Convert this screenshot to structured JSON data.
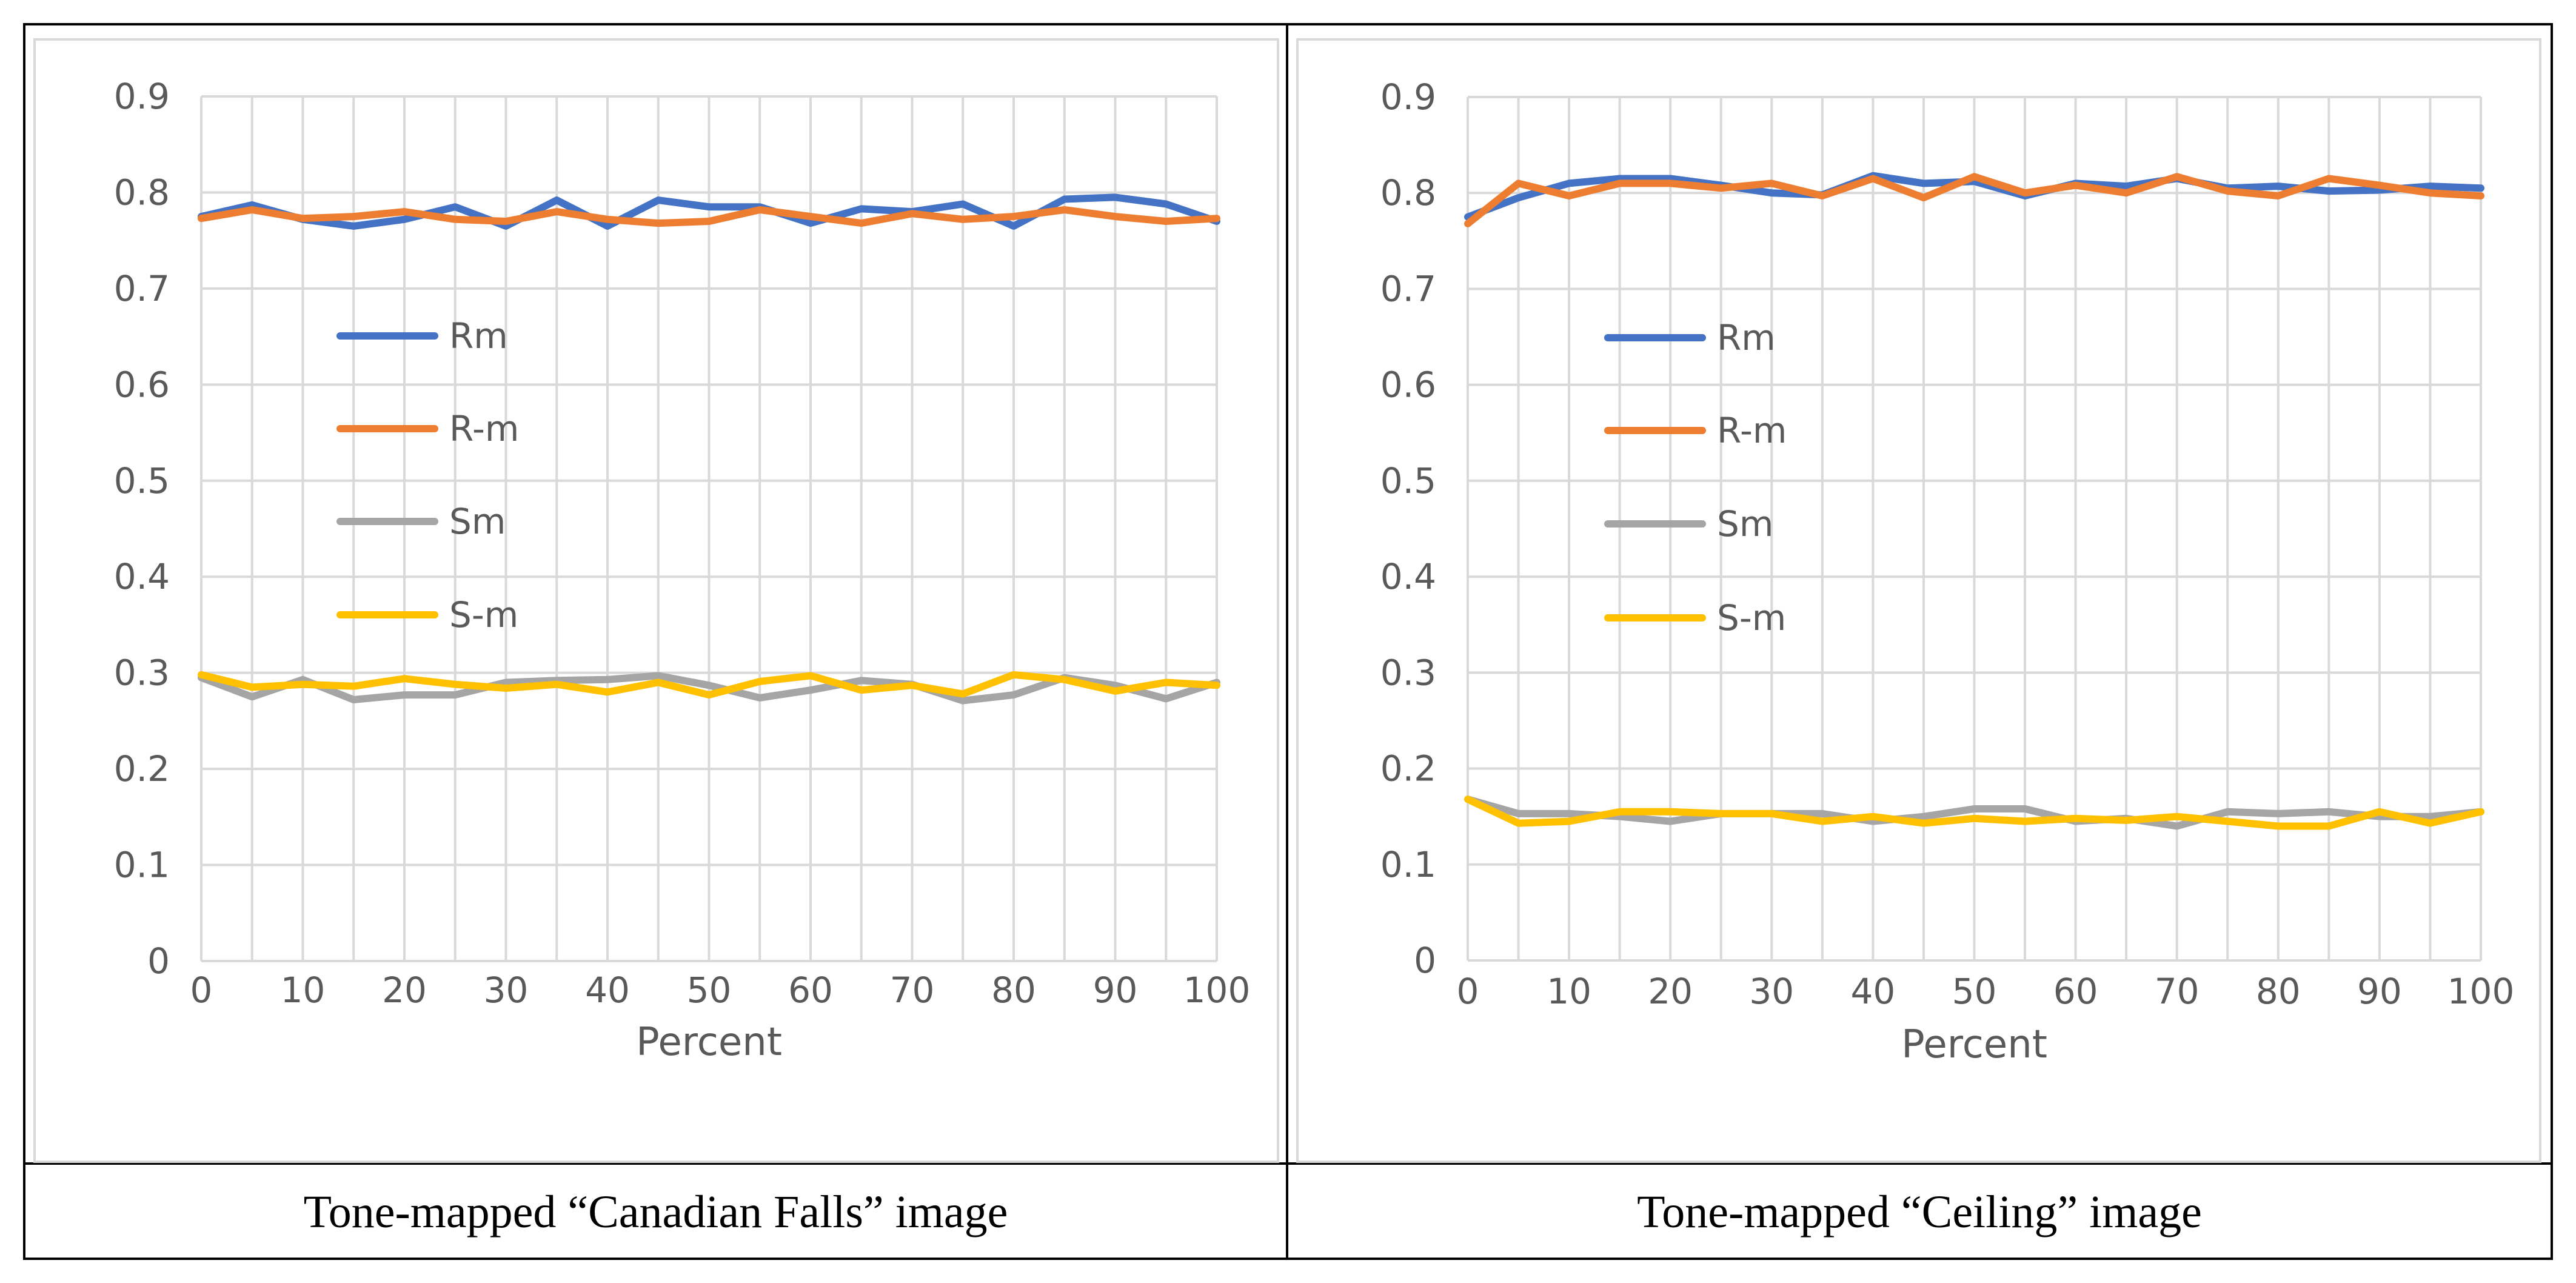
{
  "chart_data": [
    {
      "type": "line",
      "caption": "Tone-mapped “Canadian Falls” image",
      "xlabel": "Percent",
      "ylabel": "",
      "xlim": [
        0,
        100
      ],
      "ylim": [
        0,
        0.9
      ],
      "x_ticks": [
        0,
        10,
        20,
        30,
        40,
        50,
        60,
        70,
        80,
        90,
        100
      ],
      "y_ticks": [
        0,
        0.1,
        0.2,
        0.3,
        0.4,
        0.5,
        0.6,
        0.7,
        0.8,
        0.9
      ],
      "grid": true,
      "legend": "center-left",
      "x": [
        0,
        5,
        10,
        15,
        20,
        25,
        30,
        35,
        40,
        45,
        50,
        55,
        60,
        65,
        70,
        75,
        80,
        85,
        90,
        95,
        100
      ],
      "series": [
        {
          "name": "Rm",
          "color": "#4472c4",
          "values": [
            0.775,
            0.787,
            0.772,
            0.765,
            0.772,
            0.785,
            0.765,
            0.792,
            0.765,
            0.792,
            0.785,
            0.785,
            0.768,
            0.783,
            0.78,
            0.788,
            0.765,
            0.793,
            0.795,
            0.788,
            0.77
          ]
        },
        {
          "name": "R-m",
          "color": "#ed7d31",
          "values": [
            0.773,
            0.782,
            0.773,
            0.775,
            0.78,
            0.772,
            0.77,
            0.78,
            0.772,
            0.768,
            0.77,
            0.782,
            0.775,
            0.768,
            0.778,
            0.772,
            0.775,
            0.782,
            0.775,
            0.77,
            0.773
          ]
        },
        {
          "name": "Sm",
          "color": "#a5a5a5",
          "values": [
            0.295,
            0.275,
            0.293,
            0.272,
            0.277,
            0.277,
            0.29,
            0.292,
            0.293,
            0.297,
            0.287,
            0.274,
            0.282,
            0.292,
            0.288,
            0.271,
            0.277,
            0.295,
            0.287,
            0.273,
            0.29
          ]
        },
        {
          "name": "S-m",
          "color": "#ffc000",
          "values": [
            0.298,
            0.285,
            0.288,
            0.286,
            0.294,
            0.288,
            0.284,
            0.288,
            0.28,
            0.29,
            0.277,
            0.291,
            0.297,
            0.282,
            0.287,
            0.278,
            0.298,
            0.293,
            0.281,
            0.29,
            0.287
          ]
        }
      ]
    },
    {
      "type": "line",
      "caption": "Tone-mapped “Ceiling” image",
      "xlabel": "Percent",
      "ylabel": "",
      "xlim": [
        0,
        100
      ],
      "ylim": [
        0,
        0.9
      ],
      "x_ticks": [
        0,
        10,
        20,
        30,
        40,
        50,
        60,
        70,
        80,
        90,
        100
      ],
      "y_ticks": [
        0,
        0.1,
        0.2,
        0.3,
        0.4,
        0.5,
        0.6,
        0.7,
        0.8,
        0.9
      ],
      "grid": true,
      "legend": "center-left",
      "x": [
        0,
        5,
        10,
        15,
        20,
        25,
        30,
        35,
        40,
        45,
        50,
        55,
        60,
        65,
        70,
        75,
        80,
        85,
        90,
        95,
        100
      ],
      "series": [
        {
          "name": "Rm",
          "color": "#4472c4",
          "values": [
            0.775,
            0.795,
            0.81,
            0.815,
            0.815,
            0.808,
            0.8,
            0.798,
            0.818,
            0.81,
            0.812,
            0.797,
            0.81,
            0.807,
            0.815,
            0.805,
            0.807,
            0.802,
            0.803,
            0.807,
            0.805
          ]
        },
        {
          "name": "R-m",
          "color": "#ed7d31",
          "values": [
            0.768,
            0.81,
            0.797,
            0.81,
            0.81,
            0.805,
            0.81,
            0.797,
            0.815,
            0.795,
            0.817,
            0.8,
            0.808,
            0.8,
            0.817,
            0.802,
            0.797,
            0.815,
            0.808,
            0.8,
            0.797
          ]
        },
        {
          "name": "Sm",
          "color": "#a5a5a5",
          "values": [
            0.168,
            0.153,
            0.153,
            0.15,
            0.145,
            0.153,
            0.153,
            0.153,
            0.145,
            0.15,
            0.158,
            0.158,
            0.145,
            0.148,
            0.14,
            0.155,
            0.153,
            0.155,
            0.15,
            0.15,
            0.155
          ]
        },
        {
          "name": "S-m",
          "color": "#ffc000",
          "values": [
            0.168,
            0.143,
            0.145,
            0.155,
            0.155,
            0.153,
            0.153,
            0.145,
            0.15,
            0.143,
            0.148,
            0.145,
            0.148,
            0.146,
            0.15,
            0.145,
            0.14,
            0.14,
            0.155,
            0.143,
            0.155
          ]
        }
      ]
    }
  ]
}
